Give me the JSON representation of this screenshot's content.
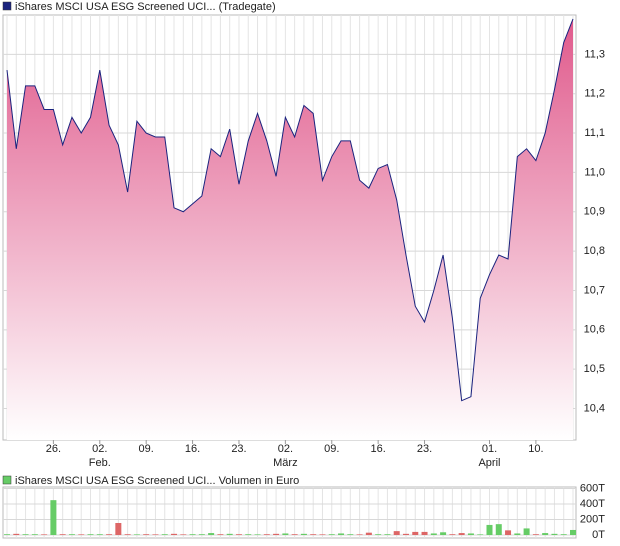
{
  "chart_data": [
    {
      "type": "area",
      "series": [
        {
          "name": "iShares MSCI USA ESG Screened UCI... (Tradegate)",
          "color": "#1a237e",
          "fill_top": "#e05a8c",
          "fill_bottom": "#ffffff",
          "values": [
            11.26,
            11.06,
            11.22,
            11.22,
            11.16,
            11.16,
            11.07,
            11.14,
            11.1,
            11.14,
            11.26,
            11.12,
            11.07,
            10.95,
            11.13,
            11.1,
            11.09,
            11.09,
            10.91,
            10.9,
            10.92,
            10.94,
            11.06,
            11.04,
            11.11,
            10.97,
            11.08,
            11.15,
            11.08,
            10.99,
            11.14,
            11.09,
            11.17,
            11.15,
            10.98,
            11.04,
            11.08,
            11.08,
            10.98,
            10.96,
            11.01,
            11.02,
            10.93,
            10.79,
            10.66,
            10.62,
            10.7,
            10.79,
            10.63,
            10.42,
            10.43,
            10.68,
            10.74,
            10.79,
            10.78,
            11.04,
            11.06,
            11.03,
            11.1,
            11.21,
            11.33,
            11.39
          ]
        }
      ],
      "categories": [
        null,
        null,
        null,
        null,
        null,
        "26.",
        null,
        null,
        null,
        null,
        "02.",
        null,
        null,
        null,
        null,
        "09.",
        null,
        null,
        null,
        null,
        "16.",
        null,
        null,
        null,
        null,
        "23.",
        null,
        null,
        null,
        null,
        "02.",
        null,
        null,
        null,
        null,
        "09.",
        null,
        null,
        null,
        null,
        "16.",
        null,
        null,
        null,
        null,
        "23.",
        null,
        null,
        null,
        null,
        null,
        null,
        "01.",
        null,
        null,
        null,
        null,
        "10.",
        null,
        null,
        null,
        null
      ],
      "months": [
        null,
        null,
        null,
        null,
        null,
        null,
        null,
        null,
        null,
        null,
        "Feb.",
        null,
        null,
        null,
        null,
        null,
        null,
        null,
        null,
        null,
        null,
        null,
        null,
        null,
        null,
        null,
        null,
        null,
        null,
        null,
        "März",
        null,
        null,
        null,
        null,
        null,
        null,
        null,
        null,
        null,
        null,
        null,
        null,
        null,
        null,
        null,
        null,
        null,
        null,
        null,
        null,
        null,
        "April",
        null,
        null,
        null,
        null,
        null,
        null,
        null,
        null,
        null
      ],
      "ylim": [
        10.32,
        11.4
      ],
      "yticks": [
        {
          "value": 10.4,
          "label": "10,4"
        },
        {
          "value": 10.5,
          "label": "10,5"
        },
        {
          "value": 10.6,
          "label": "10,6"
        },
        {
          "value": 10.7,
          "label": "10,7"
        },
        {
          "value": 10.8,
          "label": "10,8"
        },
        {
          "value": 10.9,
          "label": "10,9"
        },
        {
          "value": 11.0,
          "label": "11,0"
        },
        {
          "value": 11.1,
          "label": "11,1"
        },
        {
          "value": 11.2,
          "label": "11,2"
        },
        {
          "value": 11.3,
          "label": "11,3"
        }
      ],
      "grid": true
    },
    {
      "type": "bar",
      "series": [
        {
          "name": "iShares MSCI USA ESG Screened UCI... Volumen in Euro",
          "color": "#66cc66",
          "values": [
            10,
            15,
            10,
            10,
            8,
            450,
            10,
            10,
            8,
            10,
            10,
            10,
            155,
            10,
            8,
            10,
            8,
            10,
            15,
            8,
            10,
            10,
            25,
            10,
            15,
            10,
            10,
            8,
            10,
            15,
            20,
            10,
            15,
            10,
            8,
            10,
            20,
            10,
            8,
            30,
            10,
            10,
            50,
            15,
            40,
            40,
            20,
            35,
            10,
            25,
            20,
            8,
            130,
            140,
            60,
            20,
            85,
            10,
            25,
            15,
            10,
            65
          ],
          "colors": [
            "#66cc66",
            "#dd6666",
            "#66cc66",
            "#66cc66",
            "#dd6666",
            "#66cc66",
            "#dd6666",
            "#66cc66",
            "#dd6666",
            "#66cc66",
            "#66cc66",
            "#dd6666",
            "#dd6666",
            "#dd6666",
            "#66cc66",
            "#dd6666",
            "#dd6666",
            "#66cc66",
            "#dd6666",
            "#dd6666",
            "#66cc66",
            "#66cc66",
            "#66cc66",
            "#dd6666",
            "#66cc66",
            "#dd6666",
            "#66cc66",
            "#66cc66",
            "#dd6666",
            "#dd6666",
            "#66cc66",
            "#dd6666",
            "#66cc66",
            "#dd6666",
            "#dd6666",
            "#66cc66",
            "#66cc66",
            "#66cc66",
            "#dd6666",
            "#dd6666",
            "#66cc66",
            "#66cc66",
            "#dd6666",
            "#dd6666",
            "#dd6666",
            "#dd6666",
            "#66cc66",
            "#66cc66",
            "#dd6666",
            "#dd6666",
            "#66cc66",
            "#66cc66",
            "#66cc66",
            "#66cc66",
            "#dd6666",
            "#66cc66",
            "#66cc66",
            "#dd6666",
            "#66cc66",
            "#66cc66",
            "#66cc66",
            "#66cc66"
          ]
        }
      ],
      "ylim": [
        0,
        620
      ],
      "yticks": [
        {
          "value": 0,
          "label": "0T"
        },
        {
          "value": 200,
          "label": "200T"
        },
        {
          "value": 400,
          "label": "400T"
        },
        {
          "value": 600,
          "label": "600T"
        }
      ],
      "grid": true
    }
  ]
}
